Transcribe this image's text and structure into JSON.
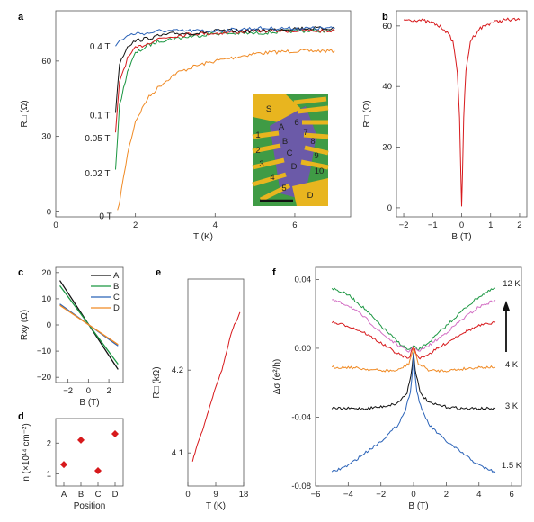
{
  "chart_data": [
    {
      "panel": "a",
      "type": "line",
      "xlabel": "T (K)",
      "ylabel": "R□ (Ω)",
      "xlim": [
        0,
        7.4
      ],
      "ylim": [
        -2,
        80
      ],
      "xticks": [
        0,
        2,
        4,
        6
      ],
      "yticks": [
        0,
        30,
        60
      ],
      "series": [
        {
          "name": "0 T",
          "color": "#f08a24",
          "x": [
            1.55,
            1.6,
            1.8,
            2.0,
            2.3,
            2.6,
            3.0,
            3.5,
            4.0,
            5.0,
            6.0,
            7.0
          ],
          "y": [
            0,
            4,
            23,
            36,
            45,
            50,
            55,
            58,
            60,
            63,
            64,
            64
          ]
        },
        {
          "name": "0.02 T",
          "color": "#1a9641",
          "x": [
            1.5,
            1.6,
            1.8,
            2.0,
            2.3,
            2.6,
            3.0,
            3.5,
            4.0,
            5.0,
            6.0,
            7.0
          ],
          "y": [
            17,
            42,
            56,
            63,
            66,
            68,
            69,
            70,
            71,
            71,
            72,
            72
          ]
        },
        {
          "name": "0.05 T",
          "color": "#d7191c",
          "x": [
            1.5,
            1.6,
            1.8,
            2.0,
            2.3,
            2.6,
            3.0,
            3.5,
            4.0,
            5.0,
            6.0,
            7.0
          ],
          "y": [
            31,
            52,
            61,
            65,
            67,
            69,
            70,
            71,
            71,
            72,
            72,
            72
          ]
        },
        {
          "name": "0.1 T",
          "color": "#111111",
          "x": [
            1.5,
            1.6,
            1.8,
            2.0,
            2.3,
            2.6,
            3.0,
            3.5,
            4.0,
            5.0,
            6.0,
            7.0
          ],
          "y": [
            40,
            59,
            66,
            68,
            69,
            70,
            71,
            71,
            72,
            72,
            73,
            73
          ]
        },
        {
          "name": "0.4 T",
          "color": "#2b63b8",
          "x": [
            1.5,
            1.6,
            1.8,
            2.0,
            2.3,
            2.6,
            3.0,
            3.5,
            4.0,
            5.0,
            6.0,
            7.0
          ],
          "y": [
            66,
            68,
            70,
            71,
            71,
            72,
            72,
            72,
            72,
            73,
            73,
            73
          ]
        }
      ],
      "inset_labels": [
        "S",
        "A",
        "B",
        "C",
        "D",
        "D",
        "1",
        "2",
        "3",
        "4",
        "5",
        "6",
        "7",
        "8",
        "9",
        "10"
      ]
    },
    {
      "panel": "b",
      "type": "line",
      "xlabel": "B (T)",
      "ylabel": "R□ (Ω)",
      "xlim": [
        -2.25,
        2.25
      ],
      "ylim": [
        -3,
        65
      ],
      "xticks": [
        -2,
        -1,
        0,
        1,
        2
      ],
      "yticks": [
        0,
        20,
        40,
        60
      ],
      "series": [
        {
          "color": "#d7191c",
          "x": [
            -2.0,
            -1.5,
            -1.0,
            -0.6,
            -0.3,
            -0.15,
            -0.07,
            -0.03,
            0.0,
            0.03,
            0.07,
            0.15,
            0.3,
            0.6,
            1.0,
            1.5,
            2.0
          ],
          "y": [
            62,
            62,
            61,
            59,
            55,
            45,
            30,
            12,
            0,
            12,
            30,
            45,
            55,
            59,
            61,
            62,
            62
          ]
        }
      ]
    },
    {
      "panel": "c",
      "type": "line",
      "xlabel": "B (T)",
      "ylabel": "Rxy (Ω)",
      "xlim": [
        -3.2,
        3.4
      ],
      "ylim": [
        -22,
        22
      ],
      "xticks": [
        -2,
        0,
        2
      ],
      "yticks": [
        -20,
        -10,
        0,
        10,
        20
      ],
      "series": [
        {
          "name": "A",
          "color": "#111111",
          "x": [
            -2.8,
            2.9
          ],
          "y": [
            17,
            -17
          ]
        },
        {
          "name": "B",
          "color": "#1a9641",
          "x": [
            -2.8,
            2.9
          ],
          "y": [
            15,
            -15
          ]
        },
        {
          "name": "C",
          "color": "#2b63b8",
          "x": [
            -2.8,
            2.9
          ],
          "y": [
            8,
            -8
          ]
        },
        {
          "name": "D",
          "color": "#f08a24",
          "x": [
            -2.8,
            2.9
          ],
          "y": [
            7.5,
            -7.5
          ]
        }
      ]
    },
    {
      "panel": "d",
      "type": "scatter",
      "xlabel": "Position",
      "ylabel": "n (×10¹⁴ cm⁻²)",
      "categories": [
        "A",
        "B",
        "C",
        "D"
      ],
      "values": [
        1.3,
        2.1,
        1.1,
        2.3
      ],
      "ylim": [
        0.6,
        2.8
      ],
      "yticks": [
        1,
        2
      ],
      "color": "#d7191c"
    },
    {
      "panel": "e",
      "type": "line",
      "xlabel": "T (K)",
      "ylabel": "R□ (kΩ)",
      "xlim": [
        0,
        18
      ],
      "ylim": [
        4.06,
        4.31
      ],
      "xticks": [
        0,
        9,
        18
      ],
      "xtick_labels": [
        "0",
        "9",
        "18"
      ],
      "yticks": [
        4.1,
        4.2
      ],
      "series": [
        {
          "color": "#d7191c",
          "x": [
            1.5,
            3,
            5,
            7,
            9,
            11,
            12,
            13,
            14,
            15,
            16,
            16.8
          ],
          "y": [
            4.09,
            4.11,
            4.13,
            4.155,
            4.18,
            4.2,
            4.215,
            4.23,
            4.245,
            4.255,
            4.262,
            4.27
          ]
        }
      ]
    },
    {
      "panel": "f",
      "type": "line",
      "xlabel": "B (T)",
      "ylabel": "Δσ (e²/h)",
      "xlim": [
        -6,
        6.6
      ],
      "ylim": [
        -0.08,
        0.047
      ],
      "xticks": [
        -6,
        -4,
        -2,
        0,
        2,
        4,
        6
      ],
      "yticks": [
        -0.08,
        -0.04,
        0.0,
        0.04
      ],
      "ytick_labels": [
        "-0.08",
        "-0.04",
        "0.00",
        "0.04"
      ],
      "labels": [
        "12 K",
        "4 K",
        "3 K",
        "1.5 K"
      ],
      "series": [
        {
          "color": "#1a9641",
          "x": [
            -5,
            -4,
            -3,
            -2,
            -1,
            -0.3,
            0,
            0.3,
            1,
            2,
            3,
            4,
            5
          ],
          "y": [
            0.035,
            0.031,
            0.023,
            0.013,
            0.004,
            -0.001,
            0.001,
            -0.001,
            0.004,
            0.013,
            0.022,
            0.03,
            0.035
          ]
        },
        {
          "color": "#d36fc4",
          "x": [
            -5,
            -4,
            -3,
            -2,
            -1,
            -0.3,
            0,
            0.3,
            1,
            2,
            3,
            4,
            5
          ],
          "y": [
            0.028,
            0.025,
            0.018,
            0.009,
            0.002,
            -0.002,
            0.001,
            -0.002,
            0.002,
            0.009,
            0.017,
            0.024,
            0.028
          ]
        },
        {
          "color": "#d7191c",
          "x": [
            -5,
            -4,
            -3,
            -2,
            -1,
            -0.3,
            0,
            0.3,
            1,
            2,
            3,
            4,
            5
          ],
          "y": [
            0.015,
            0.013,
            0.009,
            0.003,
            -0.003,
            -0.006,
            0.001,
            -0.006,
            -0.003,
            0.003,
            0.009,
            0.013,
            0.015
          ]
        },
        {
          "color": "#f08a24",
          "x": [
            -5,
            -4,
            -3,
            -2,
            -1,
            -0.3,
            0,
            0.3,
            1,
            2,
            3,
            4,
            5
          ],
          "y": [
            -0.011,
            -0.011,
            -0.012,
            -0.013,
            -0.013,
            -0.009,
            0.0,
            -0.009,
            -0.013,
            -0.013,
            -0.012,
            -0.011,
            -0.011
          ]
        },
        {
          "color": "#111111",
          "x": [
            -5,
            -4,
            -3,
            -2,
            -1,
            -0.4,
            -0.1,
            0,
            0.1,
            0.4,
            1,
            2,
            3,
            4,
            5
          ],
          "y": [
            -0.035,
            -0.035,
            -0.035,
            -0.034,
            -0.032,
            -0.026,
            -0.012,
            -0.002,
            -0.012,
            -0.026,
            -0.032,
            -0.034,
            -0.035,
            -0.035,
            -0.035
          ]
        },
        {
          "color": "#2b63b8",
          "x": [
            -5,
            -4,
            -3,
            -2,
            -1,
            -0.5,
            -0.2,
            -0.05,
            0,
            0.05,
            0.2,
            0.5,
            1,
            2,
            3,
            4,
            5
          ],
          "y": [
            -0.072,
            -0.068,
            -0.061,
            -0.054,
            -0.045,
            -0.036,
            -0.025,
            -0.012,
            -0.002,
            -0.012,
            -0.025,
            -0.036,
            -0.045,
            -0.054,
            -0.061,
            -0.068,
            -0.072
          ]
        }
      ]
    }
  ]
}
